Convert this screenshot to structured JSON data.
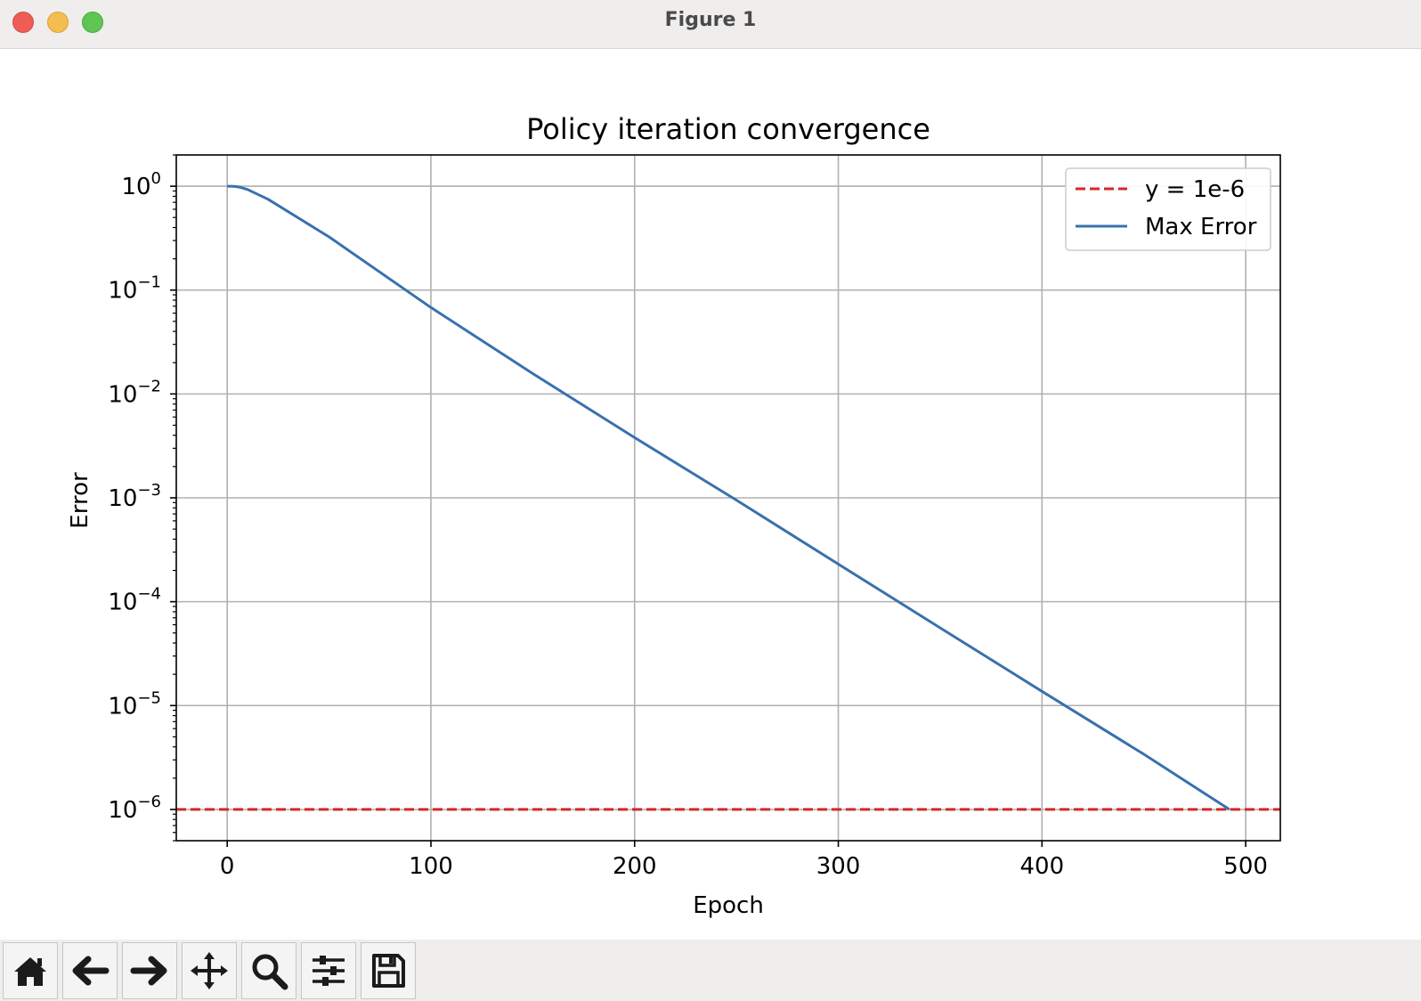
{
  "window": {
    "title": "Figure 1"
  },
  "toolbar": {
    "buttons": [
      {
        "icon": "home-icon"
      },
      {
        "icon": "back-arrow-icon"
      },
      {
        "icon": "forward-arrow-icon"
      },
      {
        "icon": "pan-icon"
      },
      {
        "icon": "zoom-icon"
      },
      {
        "icon": "sliders-icon"
      },
      {
        "icon": "save-icon"
      }
    ]
  },
  "chart_data": {
    "type": "line",
    "title": "Policy iteration convergence",
    "xlabel": "Epoch",
    "ylabel": "Error",
    "xlim": [
      -25,
      517
    ],
    "ylim": [
      5e-07,
      2
    ],
    "yscale": "log",
    "grid": true,
    "legend_position": "top-right",
    "xticks": [
      0,
      100,
      200,
      300,
      400,
      500
    ],
    "xtick_labels": [
      "0",
      "100",
      "200",
      "300",
      "400",
      "500"
    ],
    "yticks": [
      1,
      0.1,
      0.01,
      0.001,
      0.0001,
      1e-05,
      1e-06
    ],
    "ytick_labels": [
      {
        "base": "10",
        "exp": "0"
      },
      {
        "base": "10",
        "exp": "−1"
      },
      {
        "base": "10",
        "exp": "−2"
      },
      {
        "base": "10",
        "exp": "−3"
      },
      {
        "base": "10",
        "exp": "−4"
      },
      {
        "base": "10",
        "exp": "−5"
      },
      {
        "base": "10",
        "exp": "−6"
      }
    ],
    "series": [
      {
        "name": "y = 1e-6",
        "kind": "hline",
        "y": 1e-06,
        "color": "#d62728",
        "style": "dashed"
      },
      {
        "name": "Max Error",
        "kind": "line",
        "color": "#3a70ae",
        "style": "solid",
        "x": [
          0,
          2,
          4,
          6,
          10,
          20,
          50,
          100,
          150,
          200,
          250,
          300,
          350,
          400,
          450,
          492
        ],
        "y": [
          1,
          1,
          0.995,
          0.98,
          0.93,
          0.75,
          0.325,
          0.068,
          0.0157,
          0.0038,
          0.00095,
          0.00023,
          5.6e-05,
          1.37e-05,
          3.4e-06,
          1e-06
        ]
      }
    ]
  }
}
